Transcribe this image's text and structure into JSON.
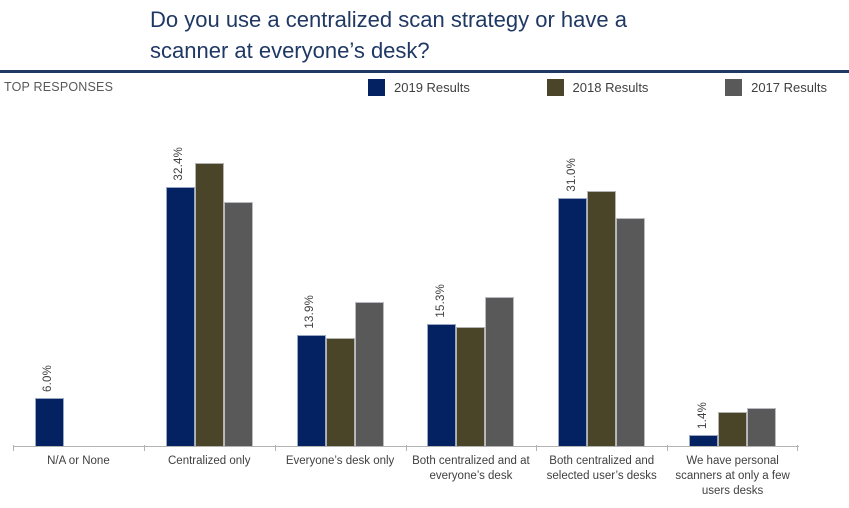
{
  "title": "Do you use a centralized scan strategy or have a\nscanner at everyone’s desk?",
  "header": {
    "label": "TOP RESPONSES"
  },
  "legend": [
    {
      "label": "2019 Results",
      "color": "#042161"
    },
    {
      "label": "2018 Results",
      "color": "#4a4428"
    },
    {
      "label": "2017 Results",
      "color": "#595959"
    }
  ],
  "colors": {
    "title_navy": "#1f3864",
    "divider": "#1f3864",
    "axis": "#b3b3b3",
    "label_text": "#404040",
    "header_text": "#595959"
  },
  "chart_data": {
    "type": "bar",
    "title": "Do you use a centralized scan strategy or have a scanner at everyone’s desk?",
    "categories": [
      "N/A or None",
      "Centralized only",
      "Everyone’s desk only",
      "Both centralized and at everyone’s desk",
      "Both centralized and selected user’s desks",
      "We have personal scanners at only a few users desks"
    ],
    "series": [
      {
        "name": "2019 Results",
        "color": "#042161",
        "values": [
          6.0,
          32.4,
          13.9,
          15.3,
          31.0,
          1.4
        ],
        "data_labels": [
          "6.0%",
          "32.4%",
          "13.9%",
          "15.3%",
          "31.0%",
          "1.4%"
        ]
      },
      {
        "name": "2018 Results",
        "color": "#4a4428",
        "values": [
          0,
          35.4,
          13.5,
          14.9,
          31.9,
          4.3
        ],
        "data_labels": null
      },
      {
        "name": "2017 Results",
        "color": "#595959",
        "values": [
          0,
          30.5,
          18.0,
          18.6,
          28.5,
          4.8
        ],
        "data_labels": null
      }
    ],
    "xlabel": "",
    "ylabel": "",
    "ylim": [
      0,
      40
    ],
    "grid": false,
    "legend_position": "top",
    "data_label_orientation": "rotated-90",
    "data_labels_shown_for": "2019 Results"
  }
}
